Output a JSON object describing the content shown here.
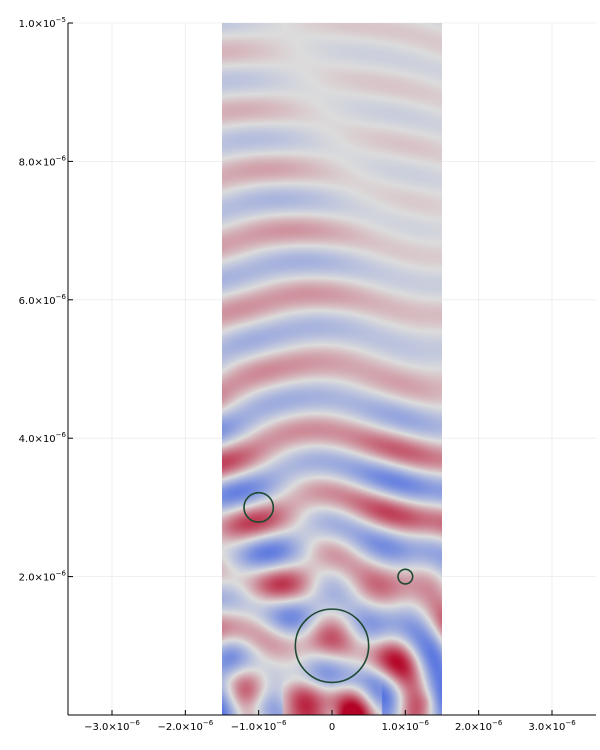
{
  "chart_data": {
    "type": "heatmap",
    "title": "",
    "xlabel": "",
    "ylabel": "",
    "xlim": [
      -3.6e-06,
      3.6e-06
    ],
    "ylim": [
      0,
      1e-05
    ],
    "grid": true,
    "legend": "none",
    "x_ticks": [
      {
        "value": -3e-06,
        "mantissa": "−3.0×10",
        "exponent": "−6"
      },
      {
        "value": -2e-06,
        "mantissa": "−2.0×10",
        "exponent": "−6"
      },
      {
        "value": -1e-06,
        "mantissa": "−1.0×10",
        "exponent": "−6"
      },
      {
        "value": 0,
        "mantissa": "0",
        "exponent": ""
      },
      {
        "value": 1e-06,
        "mantissa": "1.0×10",
        "exponent": "−6"
      },
      {
        "value": 2e-06,
        "mantissa": "2.0×10",
        "exponent": "−6"
      },
      {
        "value": 3e-06,
        "mantissa": "3.0×10",
        "exponent": "−6"
      }
    ],
    "y_ticks": [
      {
        "value": 2e-06,
        "mantissa": "2.0×10",
        "exponent": "−6"
      },
      {
        "value": 4e-06,
        "mantissa": "4.0×10",
        "exponent": "−6"
      },
      {
        "value": 6e-06,
        "mantissa": "6.0×10",
        "exponent": "−6"
      },
      {
        "value": 8e-06,
        "mantissa": "8.0×10",
        "exponent": "−6"
      },
      {
        "value": 1e-05,
        "mantissa": "1.0×10",
        "exponent": "−5"
      }
    ],
    "field_extent": {
      "x": [
        -1.5e-06,
        1.5e-06
      ],
      "y": [
        0,
        1e-05
      ]
    },
    "field_colormap": [
      "#3b5fe0",
      "#dcdcdc",
      "#b40426"
    ],
    "circles": [
      {
        "cx": 0,
        "cy": 1e-06,
        "r": 5e-07
      },
      {
        "cx": -1e-06,
        "cy": 3e-06,
        "r": 2e-07
      },
      {
        "cx": 1e-06,
        "cy": 2e-06,
        "r": 1e-07
      }
    ],
    "circle_color": "#1e4a32",
    "axis_color": "#000000",
    "grid_color": "#ececec"
  }
}
